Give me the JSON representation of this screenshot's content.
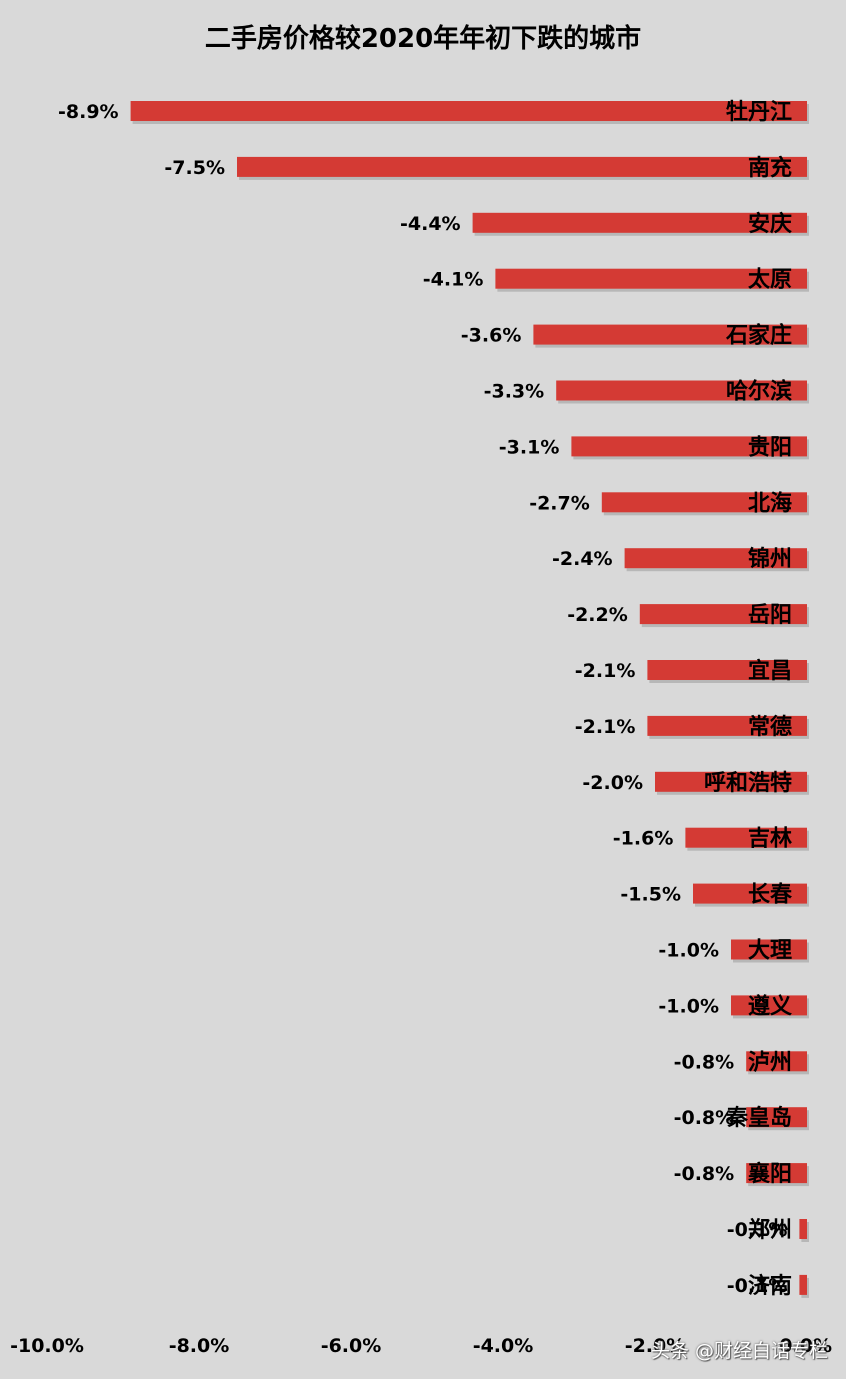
{
  "chart_data": {
    "type": "bar",
    "orientation": "horizontal",
    "title": "二手房价格较2020年年初下跌的城市",
    "categories": [
      "牡丹江",
      "南充",
      "安庆",
      "太原",
      "石家庄",
      "哈尔滨",
      "贵阳",
      "北海",
      "锦州",
      "岳阳",
      "宜昌",
      "常德",
      "呼和浩特",
      "吉林",
      "长春",
      "大理",
      "遵义",
      "泸州",
      "秦皇岛",
      "襄阳",
      "郑州",
      "济南"
    ],
    "values": [
      -8.9,
      -7.5,
      -4.4,
      -4.1,
      -3.6,
      -3.3,
      -3.1,
      -2.7,
      -2.4,
      -2.2,
      -2.1,
      -2.1,
      -2.0,
      -1.6,
      -1.5,
      -1.0,
      -1.0,
      -0.8,
      -0.8,
      -0.8,
      -0.1,
      -0.1
    ],
    "value_labels": [
      "-8.9%",
      "-7.5%",
      "-4.4%",
      "-4.1%",
      "-3.6%",
      "-3.3%",
      "-3.1%",
      "-2.7%",
      "-2.4%",
      "-2.2%",
      "-2.1%",
      "-2.1%",
      "-2.0%",
      "-1.6%",
      "-1.5%",
      "-1.0%",
      "-1.0%",
      "-0.8%",
      "-0.8%",
      "-0.8%",
      "-0.1%",
      "-0.1%"
    ],
    "xlim": [
      -10.0,
      0.0
    ],
    "x_ticks": [
      -10.0,
      -8.0,
      -6.0,
      -4.0,
      -2.0,
      0.0
    ],
    "x_tick_labels": [
      "-10.0%",
      "-8.0%",
      "-6.0%",
      "-4.0%",
      "-2.0%",
      "0.0%"
    ],
    "bar_color": "#d43a34",
    "grid": false,
    "legend": "none"
  },
  "watermark": "头条 @财经白话专栏"
}
